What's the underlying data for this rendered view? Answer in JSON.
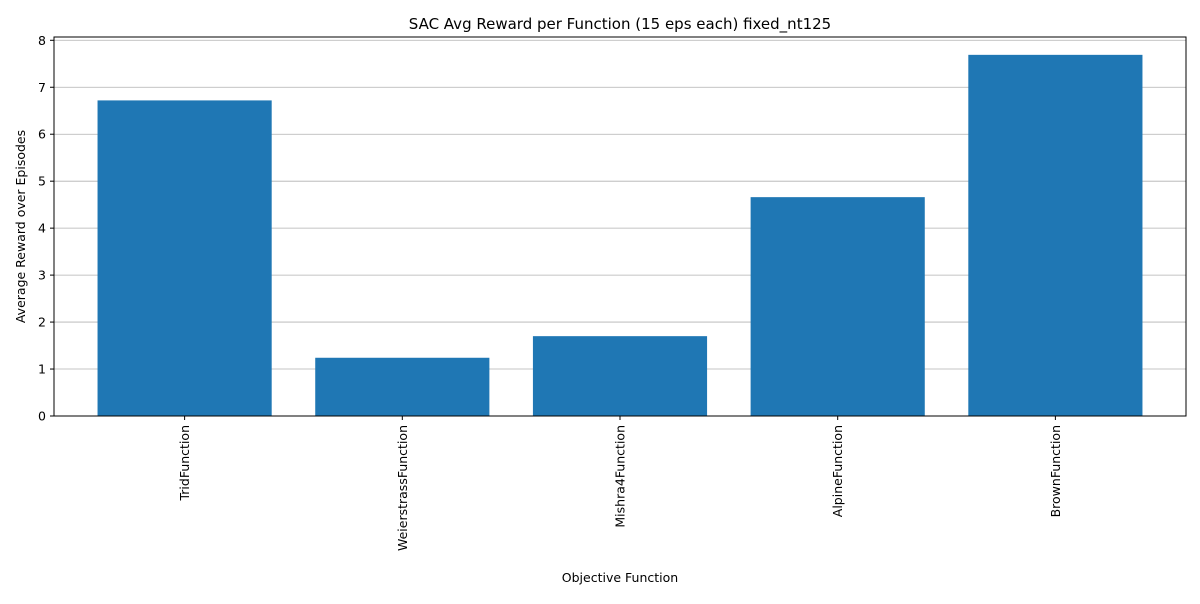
{
  "chart_data": {
    "type": "bar",
    "title": "SAC Avg Reward per Function (15 eps each) fixed_nt125",
    "xlabel": "Objective Function",
    "ylabel": "Average Reward over Episodes",
    "categories": [
      "TridFunction",
      "WeierstrassFunction",
      "Mishra4Function",
      "AlpineFunction",
      "BrownFunction"
    ],
    "values": [
      6.72,
      1.24,
      1.7,
      4.66,
      7.69
    ],
    "ylim": [
      0,
      8.07
    ],
    "yticks": [
      0,
      1,
      2,
      3,
      4,
      5,
      6,
      7,
      8
    ],
    "grid": "y",
    "bar_color": "#1f77b4",
    "grid_color": "#b0b0b0"
  }
}
